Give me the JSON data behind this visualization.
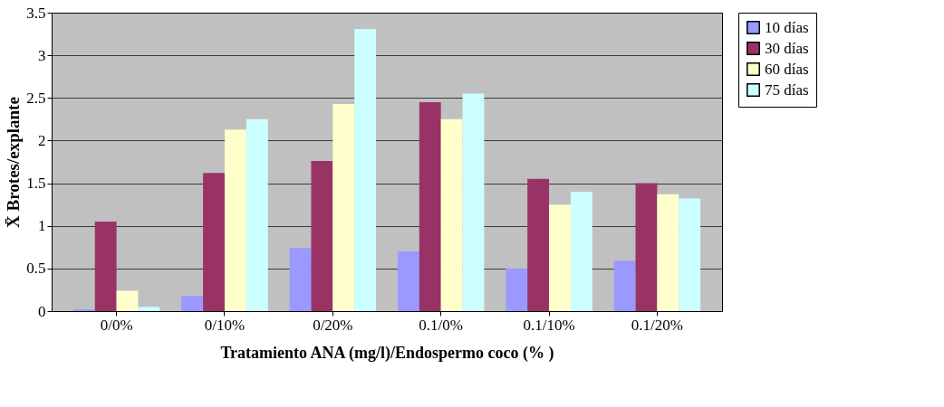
{
  "chart_data": {
    "type": "bar",
    "xlabel": "Tratamiento ANA (mg/l)/Endospermo coco (% )",
    "ylabel": "X̄ Brotes/explante",
    "categories": [
      "0/0%",
      "0/10%",
      "0/20%",
      "0.1/0%",
      "0.1/10%",
      "0.1/20%"
    ],
    "series": [
      {
        "name": "10 días",
        "color": "#9999ff",
        "values": [
          0.02,
          0.18,
          0.74,
          0.7,
          0.5,
          0.59
        ]
      },
      {
        "name": "30 días",
        "color": "#993366",
        "values": [
          1.05,
          1.62,
          1.76,
          2.45,
          1.55,
          1.5
        ]
      },
      {
        "name": "60 días",
        "color": "#ffffcc",
        "values": [
          0.24,
          2.13,
          2.43,
          2.25,
          1.25,
          1.37
        ]
      },
      {
        "name": "75 días",
        "color": "#ccffff",
        "values": [
          0.05,
          2.25,
          3.31,
          2.55,
          1.4,
          1.32
        ]
      }
    ],
    "ylim": [
      0,
      3.5
    ],
    "yticks": [
      0,
      0.5,
      1,
      1.5,
      2,
      2.5,
      3,
      3.5
    ],
    "grid": "y",
    "legend": "right"
  }
}
